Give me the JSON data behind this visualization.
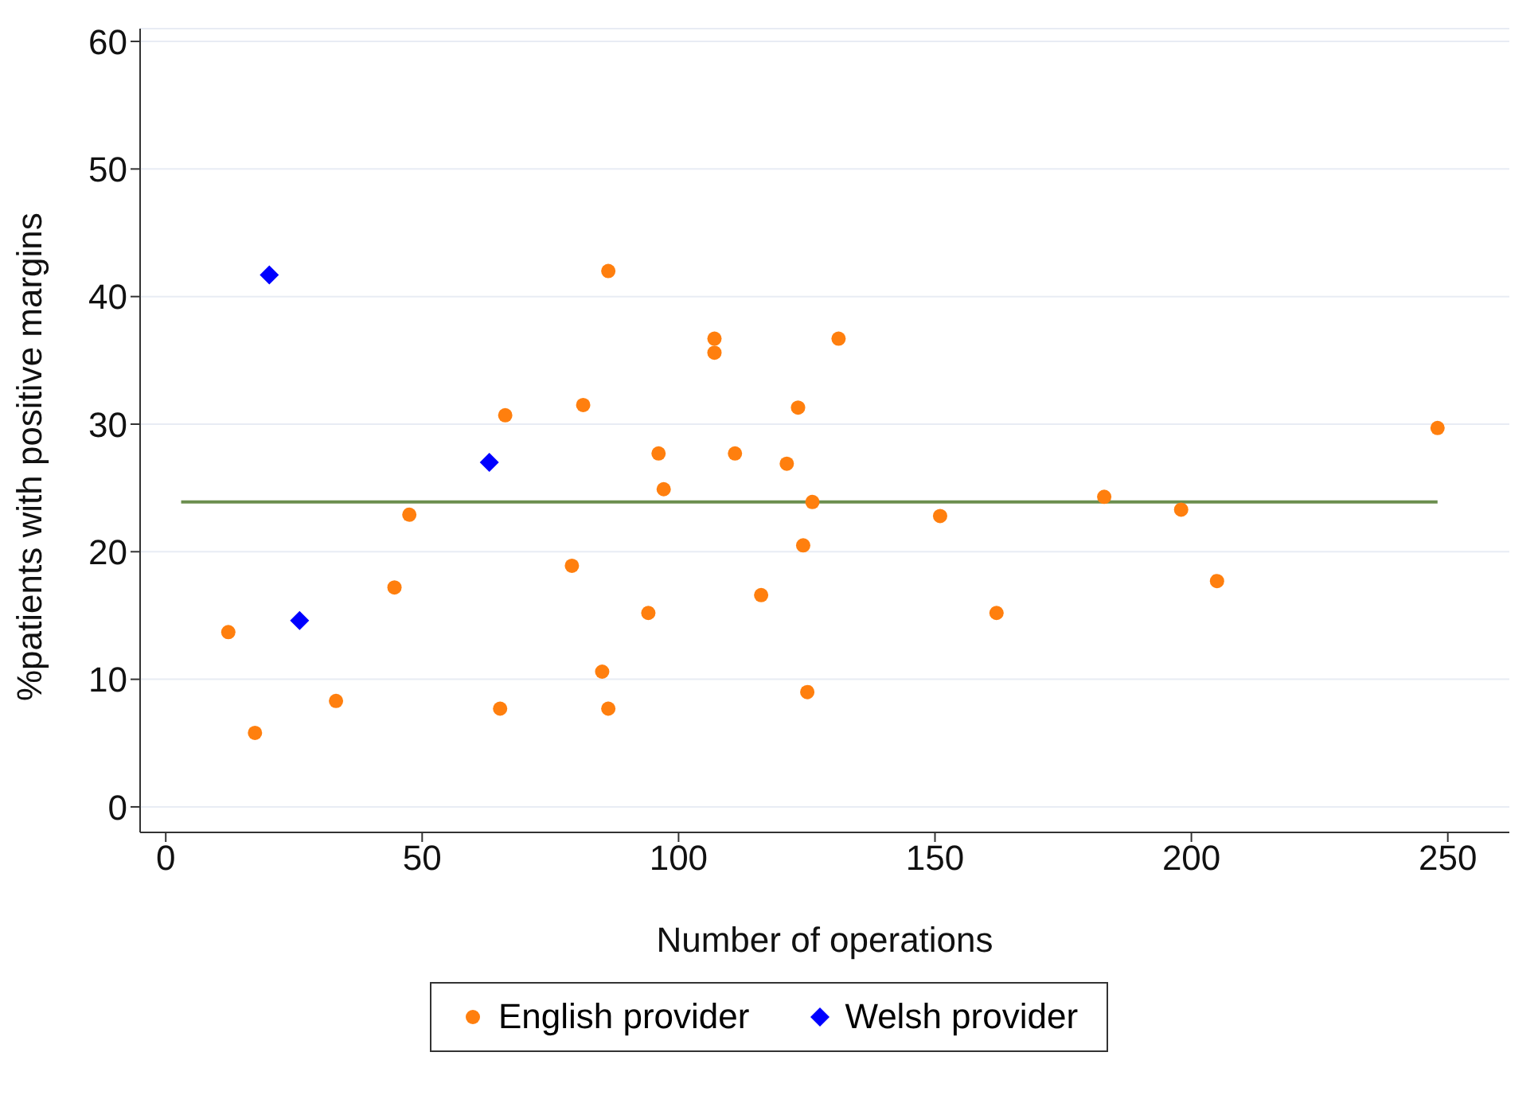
{
  "chart_data": {
    "type": "scatter",
    "xlabel": "Number of operations",
    "ylabel": "%patients with positive margins",
    "xlim": [
      -5,
      262
    ],
    "ylim": [
      -2,
      61
    ],
    "xticks": [
      0,
      50,
      100,
      150,
      200,
      250
    ],
    "yticks": [
      0,
      10,
      20,
      30,
      40,
      50,
      60
    ],
    "grid": "y",
    "legend": "bottom",
    "series": [
      {
        "name": "English provider",
        "color": "#ff7f0e",
        "marker": "circle",
        "x": [
          12.2,
          17.4,
          33.2,
          44.6,
          47.5,
          65.2,
          66.2,
          79.2,
          81.4,
          85.1,
          86.3,
          86.3,
          94.1,
          96.1,
          97.1,
          107,
          107,
          111,
          116.1,
          121.1,
          123.3,
          124.3,
          125.1,
          126.1,
          131.2,
          151,
          162,
          183,
          198,
          205,
          248
        ],
        "values": [
          13.7,
          5.8,
          8.3,
          17.2,
          22.9,
          7.7,
          30.7,
          18.9,
          31.5,
          10.6,
          42.0,
          7.7,
          15.2,
          27.7,
          24.9,
          36.7,
          35.6,
          27.7,
          16.6,
          26.9,
          31.3,
          20.5,
          9.0,
          23.9,
          36.7,
          22.8,
          15.2,
          24.3,
          23.3,
          17.7,
          29.7
        ]
      },
      {
        "name": "Welsh provider",
        "color": "#0000ff",
        "marker": "diamond",
        "x": [
          20.2,
          26.1,
          63.1
        ],
        "values": [
          41.7,
          14.6,
          27.0
        ]
      },
      {
        "type": "line",
        "color": "#6b8e4e",
        "x": [
          3,
          248
        ],
        "values": [
          23.9,
          23.9
        ]
      }
    ]
  }
}
